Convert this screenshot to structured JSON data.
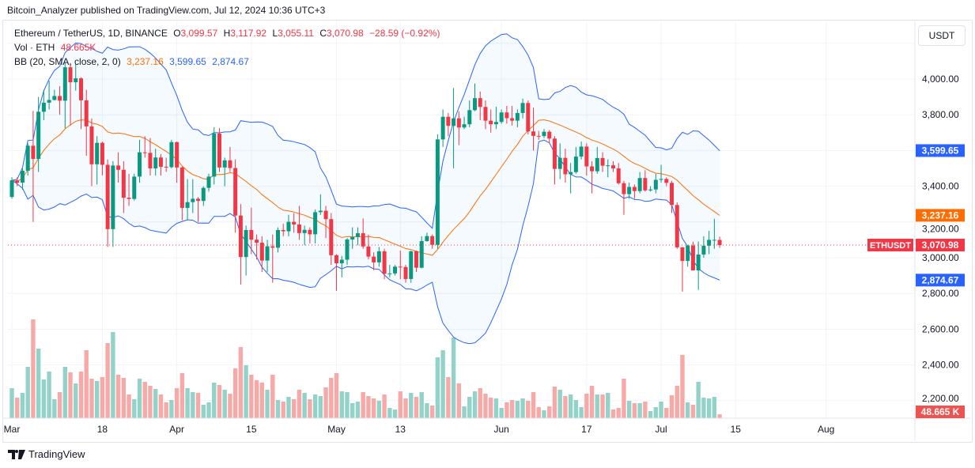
{
  "publish_line": "Bitcoin_Analyzer published on TradingView.com, Jul 12, 2024 10:36 UTC+3",
  "legend": {
    "symbol": "Ethereum / TetherUS, 1D, BINANCE",
    "o_label": "O",
    "o": "3,099.57",
    "h_label": "H",
    "h": "3,117.92",
    "l_label": "L",
    "l": "3,055.11",
    "c_label": "C",
    "c": "3,070.98",
    "change": "−28.59 (−0.92%)",
    "vol_label": "Vol · ETH",
    "vol": "48.665K",
    "bb_label": "BB (20, SMA, close, 2, 0)",
    "bb_basis": "3,237.16",
    "bb_upper": "3,599.65",
    "bb_lower": "2,874.67"
  },
  "price_axis": {
    "unit_button": "USDT",
    "ticks": [
      "4,000.00",
      "3,800.00",
      "3,400.00",
      "3,200.00",
      "3,000.00",
      "2,800.00",
      "2,600.00",
      "2,400.00",
      "2,200.00"
    ],
    "tick_values": [
      4000,
      3800,
      3400,
      3200,
      3000,
      2800,
      2600,
      2400,
      2200
    ],
    "badges": {
      "upper": "3,599.65",
      "basis": "3,237.16",
      "last": "3,070.98",
      "lower": "2,874.67",
      "volume": "48.665 K",
      "symbol": "ETHUSDT"
    }
  },
  "time_axis": {
    "labels": [
      {
        "text": "Mar",
        "date": "2024-03-01"
      },
      {
        "text": "18",
        "date": "2024-03-18"
      },
      {
        "text": "Apr",
        "date": "2024-04-01"
      },
      {
        "text": "15",
        "date": "2024-04-15"
      },
      {
        "text": "May",
        "date": "2024-05-01"
      },
      {
        "text": "13",
        "date": "2024-05-13"
      },
      {
        "text": "Jun",
        "date": "2024-06-01"
      },
      {
        "text": "17",
        "date": "2024-06-17"
      },
      {
        "text": "Jul",
        "date": "2024-07-01"
      },
      {
        "text": "15",
        "date": "2024-07-15"
      },
      {
        "text": "Aug",
        "date": "2024-08-01"
      }
    ]
  },
  "footer": {
    "brand": "TradingView"
  },
  "colors": {
    "up": "#089981",
    "down": "#f23645",
    "vol_up": "#92d2c8",
    "vol_down": "#f7a9a7",
    "bb_band": "#2962ff",
    "bb_basis": "#ff6d00",
    "band_fill": "#2196f3"
  },
  "chart_data": {
    "type": "candlestick",
    "symbol": "ETHUSDT",
    "interval": "1D",
    "start_date": "2024-03-01",
    "y_range": [
      2150,
      4250
    ],
    "grid": true,
    "indicators": [
      "Volume",
      "Bollinger Bands (20, SMA, close, 2, 0)"
    ],
    "ohlc": [
      [
        3340,
        3450,
        3330,
        3433
      ],
      [
        3433,
        3450,
        3400,
        3420
      ],
      [
        3420,
        3500,
        3380,
        3487
      ],
      [
        3487,
        3640,
        3460,
        3627
      ],
      [
        3627,
        3822,
        3200,
        3553
      ],
      [
        3553,
        3900,
        3480,
        3817
      ],
      [
        3817,
        3940,
        3770,
        3868
      ],
      [
        3868,
        3990,
        3830,
        3883
      ],
      [
        3883,
        3940,
        3880,
        3905
      ],
      [
        3905,
        3960,
        3800,
        3879
      ],
      [
        3879,
        4090,
        3725,
        4066
      ],
      [
        4066,
        4090,
        3740,
        3982
      ],
      [
        3982,
        4085,
        3935,
        4004
      ],
      [
        4004,
        4010,
        3720,
        3881
      ],
      [
        3881,
        3940,
        3570,
        3735
      ],
      [
        3735,
        3780,
        3400,
        3523
      ],
      [
        3523,
        3680,
        3410,
        3643
      ],
      [
        3643,
        3650,
        3460,
        3520
      ],
      [
        3520,
        3550,
        3060,
        3160
      ],
      [
        3160,
        3540,
        3060,
        3516
      ],
      [
        3516,
        3590,
        3420,
        3492
      ],
      [
        3492,
        3540,
        3250,
        3336
      ],
      [
        3336,
        3470,
        3290,
        3329
      ],
      [
        3329,
        3470,
        3320,
        3454
      ],
      [
        3454,
        3660,
        3420,
        3590
      ],
      [
        3590,
        3680,
        3560,
        3587
      ],
      [
        3587,
        3670,
        3460,
        3500
      ],
      [
        3500,
        3610,
        3460,
        3561
      ],
      [
        3561,
        3580,
        3460,
        3509
      ],
      [
        3509,
        3560,
        3480,
        3507
      ],
      [
        3507,
        3660,
        3500,
        3647
      ],
      [
        3647,
        3650,
        3420,
        3505
      ],
      [
        3505,
        3510,
        3210,
        3279
      ],
      [
        3279,
        3440,
        3210,
        3311
      ],
      [
        3311,
        3440,
        3250,
        3330
      ],
      [
        3330,
        3340,
        3200,
        3318
      ],
      [
        3318,
        3400,
        3290,
        3391
      ],
      [
        3391,
        3470,
        3370,
        3454
      ],
      [
        3454,
        3730,
        3410,
        3695
      ],
      [
        3695,
        3725,
        3480,
        3505
      ],
      [
        3505,
        3560,
        3400,
        3545
      ],
      [
        3545,
        3620,
        3480,
        3502
      ],
      [
        3502,
        3550,
        3140,
        3236
      ],
      [
        3236,
        3300,
        2850,
        3004
      ],
      [
        3004,
        3180,
        2900,
        3155
      ],
      [
        3155,
        3280,
        3020,
        3101
      ],
      [
        3101,
        3130,
        2990,
        3084
      ],
      [
        3084,
        3120,
        2920,
        2984
      ],
      [
        2984,
        3100,
        2920,
        3064
      ],
      [
        3064,
        3130,
        2860,
        3056
      ],
      [
        3056,
        3170,
        3030,
        3155
      ],
      [
        3155,
        3190,
        3120,
        3148
      ],
      [
        3148,
        3240,
        3120,
        3201
      ],
      [
        3201,
        3250,
        3140,
        3186
      ],
      [
        3186,
        3290,
        3100,
        3138
      ],
      [
        3138,
        3180,
        3070,
        3156
      ],
      [
        3156,
        3170,
        3080,
        3131
      ],
      [
        3131,
        3270,
        3080,
        3255
      ],
      [
        3255,
        3355,
        3240,
        3263
      ],
      [
        3263,
        3290,
        3110,
        3216
      ],
      [
        3216,
        3250,
        2960,
        3014
      ],
      [
        3014,
        3020,
        2815,
        2969
      ],
      [
        2969,
        3010,
        2890,
        2989
      ],
      [
        2989,
        3110,
        2960,
        3102
      ],
      [
        3102,
        3170,
        3050,
        3116
      ],
      [
        3116,
        3170,
        3070,
        3137
      ],
      [
        3137,
        3220,
        3050,
        3063
      ],
      [
        3063,
        3130,
        2990,
        3006
      ],
      [
        3006,
        3030,
        2930,
        2974
      ],
      [
        2974,
        3060,
        2950,
        3036
      ],
      [
        3036,
        3050,
        2880,
        2910
      ],
      [
        2910,
        2960,
        2890,
        2912
      ],
      [
        2912,
        2960,
        2900,
        2950
      ],
      [
        2950,
        3040,
        2880,
        2948
      ],
      [
        2948,
        2960,
        2860,
        2881
      ],
      [
        2881,
        3040,
        2860,
        3036
      ],
      [
        3036,
        3040,
        2920,
        2944
      ],
      [
        2944,
        3120,
        2940,
        3093
      ],
      [
        3093,
        3140,
        3090,
        3121
      ],
      [
        3121,
        3130,
        3050,
        3072
      ],
      [
        3072,
        3690,
        3050,
        3662
      ],
      [
        3662,
        3830,
        3620,
        3789
      ],
      [
        3789,
        3810,
        3680,
        3738
      ],
      [
        3738,
        3950,
        3500,
        3780
      ],
      [
        3780,
        3820,
        3630,
        3729
      ],
      [
        3729,
        3790,
        3720,
        3747
      ],
      [
        3747,
        3880,
        3730,
        3826
      ],
      [
        3826,
        3975,
        3820,
        3893
      ],
      [
        3893,
        3930,
        3770,
        3844
      ],
      [
        3844,
        3880,
        3720,
        3767
      ],
      [
        3767,
        3830,
        3700,
        3747
      ],
      [
        3747,
        3845,
        3720,
        3760
      ],
      [
        3760,
        3830,
        3750,
        3813
      ],
      [
        3813,
        3850,
        3750,
        3781
      ],
      [
        3781,
        3850,
        3740,
        3767
      ],
      [
        3767,
        3830,
        3730,
        3810
      ],
      [
        3810,
        3890,
        3780,
        3866
      ],
      [
        3866,
        3880,
        3690,
        3707
      ],
      [
        3707,
        3840,
        3600,
        3682
      ],
      [
        3682,
        3710,
        3660,
        3681
      ],
      [
        3681,
        3720,
        3670,
        3705
      ],
      [
        3705,
        3715,
        3640,
        3667
      ],
      [
        3667,
        3680,
        3410,
        3497
      ],
      [
        3497,
        3640,
        3440,
        3559
      ],
      [
        3559,
        3610,
        3420,
        3467
      ],
      [
        3467,
        3530,
        3360,
        3479
      ],
      [
        3479,
        3620,
        3470,
        3566
      ],
      [
        3566,
        3650,
        3550,
        3622
      ],
      [
        3622,
        3640,
        3460,
        3511
      ],
      [
        3511,
        3540,
        3360,
        3484
      ],
      [
        3484,
        3620,
        3470,
        3558
      ],
      [
        3558,
        3590,
        3480,
        3515
      ],
      [
        3515,
        3550,
        3450,
        3517
      ],
      [
        3517,
        3540,
        3480,
        3500
      ],
      [
        3500,
        3530,
        3410,
        3417
      ],
      [
        3417,
        3430,
        3240,
        3356
      ],
      [
        3356,
        3420,
        3330,
        3396
      ],
      [
        3396,
        3410,
        3330,
        3373
      ],
      [
        3373,
        3480,
        3360,
        3446
      ],
      [
        3446,
        3490,
        3370,
        3377
      ],
      [
        3377,
        3400,
        3370,
        3382
      ],
      [
        3382,
        3470,
        3360,
        3436
      ],
      [
        3436,
        3520,
        3420,
        3441
      ],
      [
        3441,
        3450,
        3400,
        3419
      ],
      [
        3419,
        3430,
        3250,
        3295
      ],
      [
        3295,
        3310,
        3050,
        3058
      ],
      [
        3058,
        3060,
        2810,
        2982
      ],
      [
        2982,
        3070,
        2950,
        3068
      ],
      [
        3068,
        3090,
        2930,
        2929
      ],
      [
        2929,
        3090,
        2820,
        3018
      ],
      [
        3018,
        3120,
        3000,
        3067
      ],
      [
        3067,
        3150,
        3020,
        3100
      ],
      [
        3100,
        3218,
        3050,
        3100
      ],
      [
        3099.57,
        3117.92,
        3055.11,
        3070.98
      ]
    ],
    "volume_k": [
      380,
      260,
      320,
      650,
      1250,
      880,
      490,
      590,
      240,
      330,
      650,
      580,
      440,
      590,
      860,
      500,
      470,
      520,
      950,
      1090,
      550,
      510,
      300,
      240,
      500,
      460,
      410,
      370,
      300,
      200,
      230,
      380,
      570,
      380,
      330,
      320,
      170,
      200,
      450,
      420,
      360,
      310,
      630,
      900,
      670,
      550,
      480,
      450,
      360,
      550,
      230,
      210,
      270,
      240,
      360,
      320,
      240,
      300,
      280,
      390,
      510,
      570,
      340,
      330,
      190,
      210,
      330,
      280,
      250,
      220,
      300,
      130,
      110,
      340,
      250,
      320,
      270,
      330,
      190,
      160,
      770,
      860,
      520,
      1020,
      440,
      150,
      270,
      340,
      380,
      310,
      260,
      250,
      130,
      200,
      230,
      220,
      250,
      220,
      330,
      140,
      100,
      150,
      400,
      360,
      280,
      300,
      230,
      140,
      310,
      410,
      300,
      300,
      320,
      110,
      130,
      500,
      220,
      190,
      190,
      210,
      90,
      140,
      210,
      130,
      290,
      410,
      800,
      200,
      170,
      460,
      260,
      250,
      270,
      48.665
    ],
    "bollinger_last": {
      "basis": 3237.16,
      "upper": 3599.65,
      "lower": 2874.67
    }
  }
}
